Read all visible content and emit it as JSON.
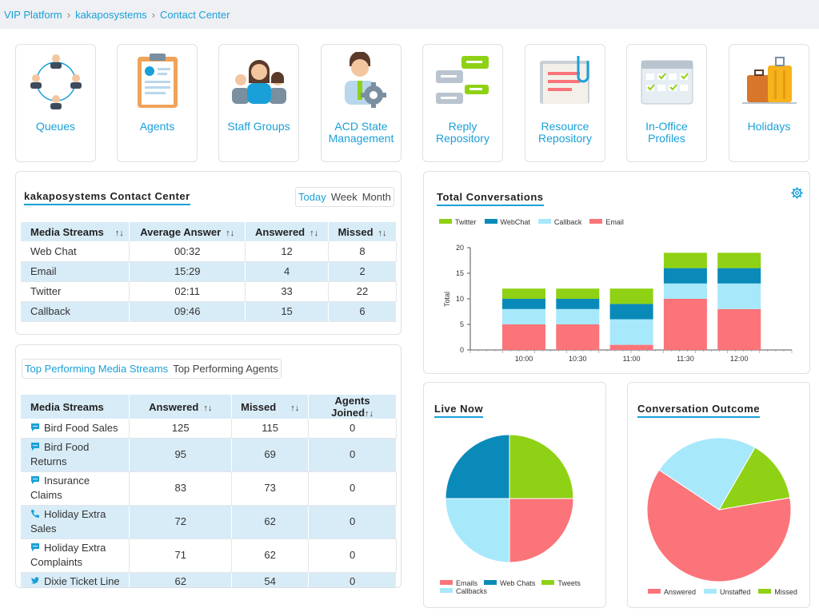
{
  "breadcrumb": [
    "VIP Platform",
    "kakaposystems",
    "Contact Center"
  ],
  "tiles": [
    {
      "label": "Queues",
      "icon": "people-network-icon"
    },
    {
      "label": "Agents",
      "icon": "clipboard-profile-icon"
    },
    {
      "label": "Staff Groups",
      "icon": "staff-group-icon"
    },
    {
      "label": "ACD State Management",
      "icon": "agent-gear-icon"
    },
    {
      "label": "Reply Repository",
      "icon": "chat-bubbles-icon"
    },
    {
      "label": "Resource Repository",
      "icon": "document-clip-icon"
    },
    {
      "label": "In-Office Profiles",
      "icon": "calendar-check-icon"
    },
    {
      "label": "Holidays",
      "icon": "luggage-icon"
    }
  ],
  "summary": {
    "title": "kakaposystems Contact Center",
    "periods": [
      "Today",
      "Week",
      "Month"
    ],
    "active_period": "Today",
    "columns": [
      "Media Streams",
      "Average Answer",
      "Answered",
      "Missed"
    ],
    "sort_glyph": "↑↓",
    "rows": [
      {
        "stream": "Web Chat",
        "avg": "00:32",
        "answered": "12",
        "missed": "8"
      },
      {
        "stream": "Email",
        "avg": "15:29",
        "answered": "4",
        "missed": "2"
      },
      {
        "stream": "Twitter",
        "avg": "02:11",
        "answered": "33",
        "missed": "22"
      },
      {
        "stream": "Callback",
        "avg": "09:46",
        "answered": "15",
        "missed": "6"
      }
    ]
  },
  "top": {
    "tabs": [
      "Top Performing Media Streams",
      "Top Performing Agents"
    ],
    "active_tab": "Top Performing Media Streams",
    "columns": [
      "Media Streams",
      "Answered",
      "Missed",
      "Agents Joined"
    ],
    "rows": [
      {
        "stream": "Bird Food Sales",
        "icon": "chat-icon",
        "answered": "125",
        "missed": "115",
        "joined": "0"
      },
      {
        "stream": "Bird Food Returns",
        "icon": "chat-icon",
        "answered": "95",
        "missed": "69",
        "joined": "0"
      },
      {
        "stream": "Insurance Claims",
        "icon": "chat-icon",
        "answered": "83",
        "missed": "73",
        "joined": "0"
      },
      {
        "stream": "Holiday Extra Sales",
        "icon": "phone-icon",
        "answered": "72",
        "missed": "62",
        "joined": "0"
      },
      {
        "stream": "Holiday Extra Complaints",
        "icon": "chat-icon",
        "answered": "71",
        "missed": "62",
        "joined": "0"
      },
      {
        "stream": "Dixie Ticket Line",
        "icon": "twitter-icon",
        "answered": "62",
        "missed": "54",
        "joined": "0"
      }
    ]
  },
  "colors": {
    "accent": "#1aa0d8",
    "twitter": "#8fd114",
    "webchat": "#0a8ab9",
    "callback": "#a7e8fb",
    "email": "#fb7479",
    "missed": "#8fd114"
  },
  "chart_data": [
    {
      "type": "bar",
      "stacked": true,
      "title": "Total Conversations",
      "ylabel": "Total",
      "xlabel": "",
      "ylim": [
        0,
        20
      ],
      "yticks": [
        0,
        5,
        10,
        15,
        20
      ],
      "categories": [
        "10:00",
        "10:30",
        "11:00",
        "11:30",
        "12:00"
      ],
      "legend_position": "top-left",
      "series": [
        {
          "name": "Email",
          "color": "#fb7479",
          "values": [
            5,
            5,
            1,
            10,
            8
          ]
        },
        {
          "name": "Callback",
          "color": "#a7e8fb",
          "values": [
            3,
            3,
            5,
            3,
            5
          ]
        },
        {
          "name": "WebChat",
          "color": "#0a8ab9",
          "values": [
            2,
            2,
            3,
            3,
            3
          ]
        },
        {
          "name": "Twitter",
          "color": "#8fd114",
          "values": [
            2,
            2,
            3,
            3,
            3
          ]
        }
      ],
      "legend_order": [
        "Twitter",
        "WebChat",
        "Callback",
        "Email"
      ]
    },
    {
      "type": "pie",
      "title": "Live Now",
      "legend_position": "bottom",
      "slices": [
        {
          "name": "Tweets",
          "color": "#8fd114",
          "value": 25
        },
        {
          "name": "Emails",
          "color": "#fb7479",
          "value": 25
        },
        {
          "name": "Callbacks",
          "color": "#a7e8fb",
          "value": 25
        },
        {
          "name": "Web Chats",
          "color": "#0a8ab9",
          "value": 25
        }
      ],
      "legend_order": [
        "Emails",
        "Web Chats",
        "Tweets",
        "Callbacks"
      ]
    },
    {
      "type": "pie",
      "title": "Conversation Outcome",
      "legend_position": "bottom",
      "slices": [
        {
          "name": "Missed",
          "color": "#8fd114",
          "value": 14
        },
        {
          "name": "Answered",
          "color": "#fb7479",
          "value": 62
        },
        {
          "name": "Unstaffed",
          "color": "#a7e8fb",
          "value": 24
        }
      ],
      "legend_order": [
        "Answered",
        "Unstaffed",
        "Missed"
      ]
    }
  ]
}
